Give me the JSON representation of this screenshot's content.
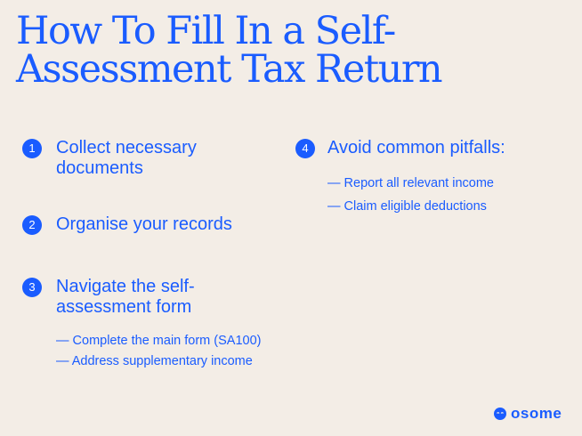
{
  "title": {
    "line1": "How To Fill In a Self-",
    "line2": "Assessment Tax Return"
  },
  "steps": [
    {
      "number": "1",
      "lines": [
        "Collect necessary",
        "documents"
      ],
      "subs": []
    },
    {
      "number": "2",
      "lines": [
        "Organise your records"
      ],
      "subs": []
    },
    {
      "number": "3",
      "lines": [
        "Navigate the self-",
        "assessment form"
      ],
      "subs": [
        "— Complete the main form (SA100)",
        "— Address supplementary income"
      ]
    },
    {
      "number": "4",
      "lines": [
        "Avoid common pitfalls:"
      ],
      "subs": [
        "— Report all relevant income",
        "— Claim eligible deductions"
      ]
    }
  ],
  "brand": {
    "name": "osome",
    "color": "#1a5cff",
    "background": "#f3ede6",
    "icon": "smiley-face-icon"
  }
}
